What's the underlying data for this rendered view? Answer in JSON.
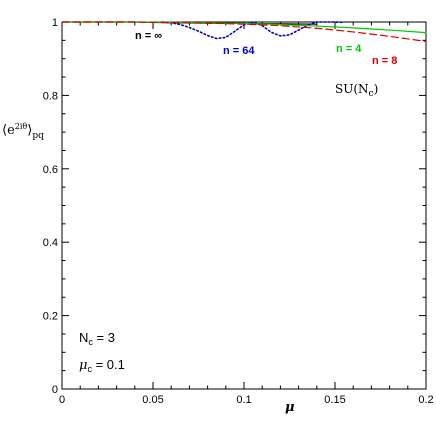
{
  "chart_data": {
    "type": "line",
    "ylabel": "⟨e^{2iθ}⟩_pq",
    "xlabel": "μ",
    "xlim": [
      0,
      0.2
    ],
    "ylim": [
      0,
      1
    ],
    "x_ticks": [
      "0",
      "0.05",
      "0.1",
      "0.15",
      "0.2"
    ],
    "y_ticks": [
      "0",
      "0.2",
      "0.4",
      "0.6",
      "0.8",
      "1"
    ],
    "grid": false,
    "series": [
      {
        "name": "n = ∞",
        "color": "#000000",
        "style": "solid",
        "x": [
          0.0,
          0.02,
          0.04,
          0.06,
          0.08,
          0.1,
          0.12,
          0.14
        ],
        "y": [
          1.0,
          1.0,
          1.0,
          0.998,
          0.997,
          0.996,
          0.995,
          0.994
        ]
      },
      {
        "name": "n = 64",
        "color": "#0000cc",
        "style": "dotted",
        "x": [
          0.055,
          0.06,
          0.065,
          0.07,
          0.075,
          0.08,
          0.085,
          0.09,
          0.095,
          0.1,
          0.105,
          0.11,
          0.115,
          0.12,
          0.125,
          0.13,
          0.135,
          0.14,
          0.145,
          0.15,
          0.155
        ],
        "y": [
          1.0,
          0.998,
          0.993,
          0.985,
          0.975,
          0.963,
          0.955,
          0.958,
          0.975,
          0.992,
          1.0,
          0.99,
          0.972,
          0.962,
          0.965,
          0.978,
          0.992,
          1.0,
          1.0,
          1.0,
          0.999
        ]
      },
      {
        "name": "n = 4",
        "color": "#00cc00",
        "style": "solid",
        "x": [
          0.0,
          0.04,
          0.08,
          0.1,
          0.12,
          0.14,
          0.16,
          0.18,
          0.2
        ],
        "y": [
          1.0,
          1.0,
          0.998,
          0.996,
          0.993,
          0.989,
          0.984,
          0.978,
          0.971
        ]
      },
      {
        "name": "n = 8",
        "color": "#dd0000",
        "style": "dashed",
        "x": [
          0.0,
          0.04,
          0.08,
          0.1,
          0.12,
          0.14,
          0.16,
          0.18,
          0.2
        ],
        "y": [
          1.0,
          1.0,
          0.997,
          0.994,
          0.99,
          0.983,
          0.973,
          0.961,
          0.947
        ]
      }
    ],
    "annotations": {
      "n_inf": "n = ∞",
      "n_64": "n = 64",
      "n_4": "n = 4",
      "n_8": "n = 8",
      "su_nc": "SU(N",
      "su_nc_sub": "c",
      "su_nc_close": ")",
      "nc_label": "N",
      "nc_sub": "c",
      "nc_value": " = 3",
      "muc_label": "μ",
      "muc_sub": "c",
      "muc_value": " = 0.1"
    }
  }
}
